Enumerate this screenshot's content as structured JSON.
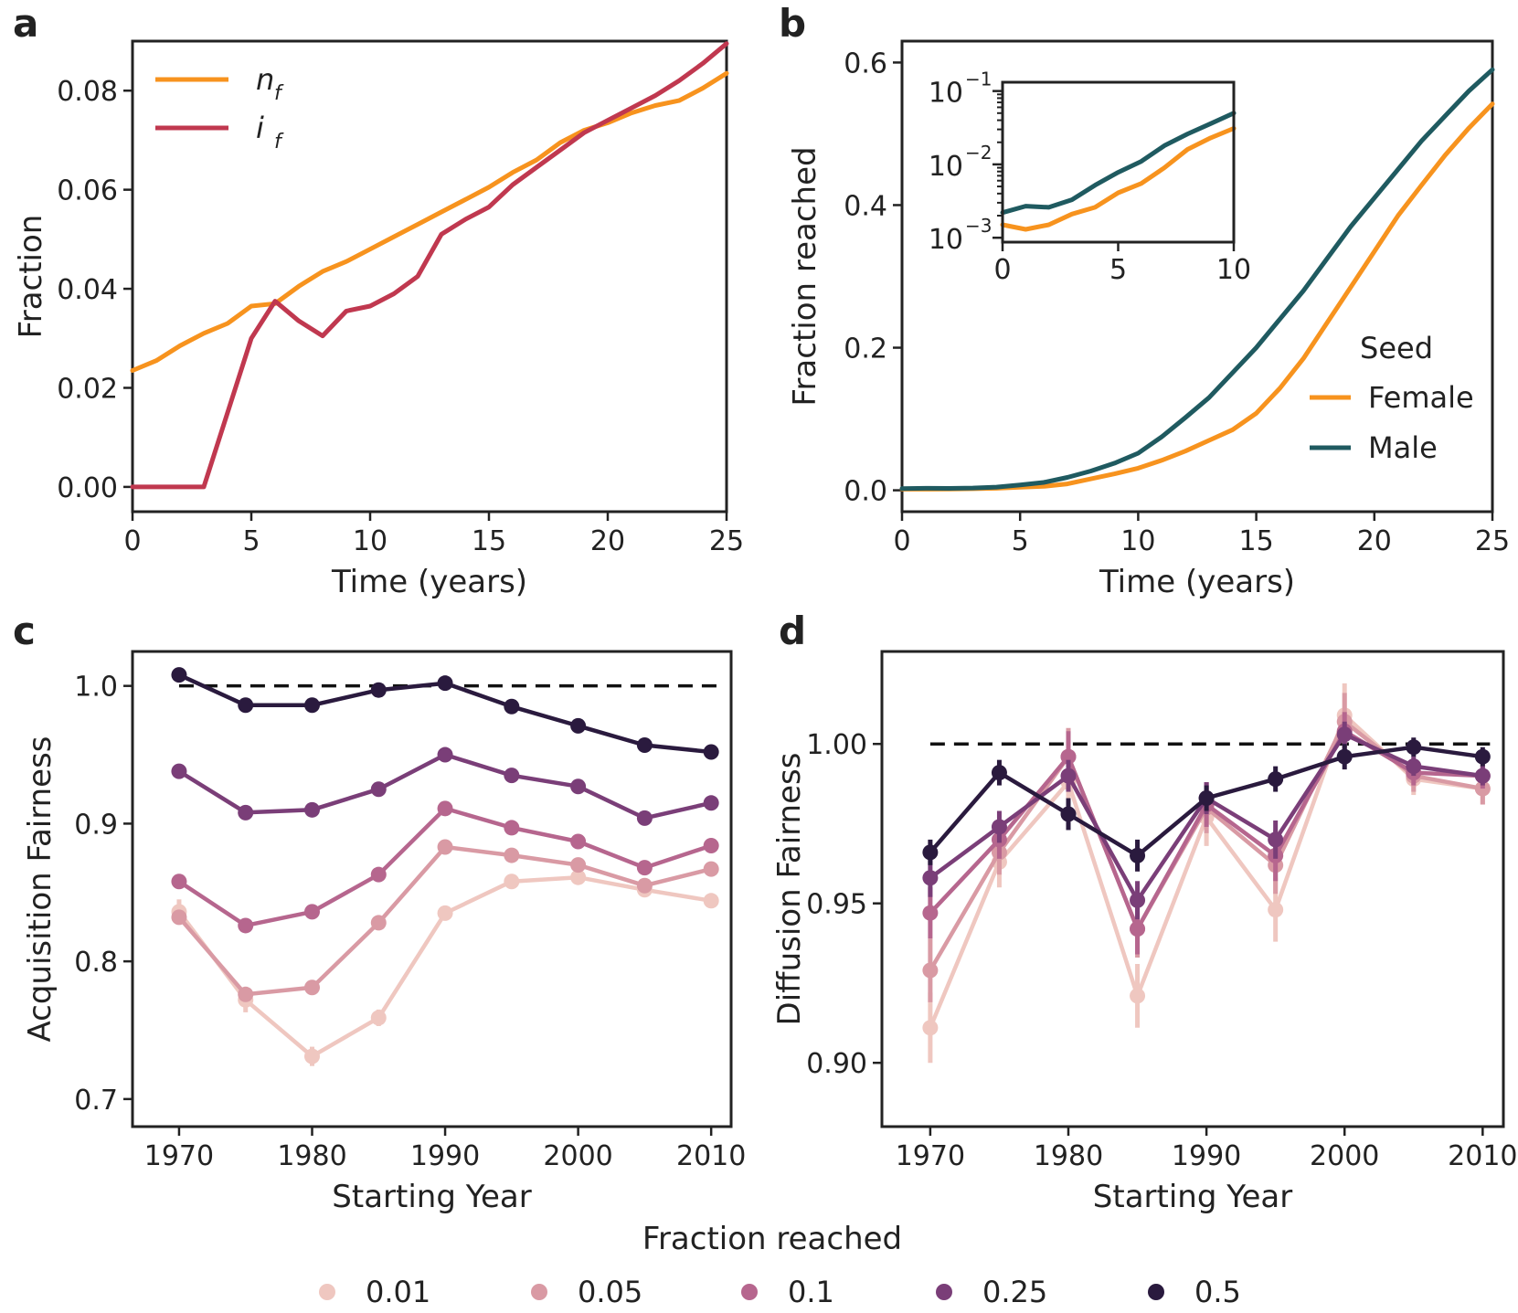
{
  "palette": {
    "nf": "#f7931e",
    "if": "#c0384f",
    "female": "#f7931e",
    "male": "#1f5a60",
    "frac_colors": [
      "#efc7c0",
      "#d99aa4",
      "#b6668e",
      "#7a3e78",
      "#2a1a3e"
    ]
  },
  "chart_data": [
    {
      "panel": "a",
      "type": "line",
      "xlabel": "Time (years)",
      "ylabel": "Fraction",
      "xlim": [
        0,
        25
      ],
      "ylim": [
        -0.005,
        0.09
      ],
      "xticks": [
        0,
        5,
        10,
        15,
        20,
        25
      ],
      "yticks": [
        0.0,
        0.02,
        0.04,
        0.06,
        0.08
      ],
      "ytick_labels": [
        "0.00",
        "0.02",
        "0.04",
        "0.06",
        "0.08"
      ],
      "legend": {
        "position": "top-left",
        "entries": [
          "n",
          "i"
        ],
        "subscript": "f"
      },
      "x": [
        0,
        1,
        2,
        3,
        4,
        5,
        6,
        7,
        8,
        9,
        10,
        11,
        12,
        13,
        14,
        15,
        16,
        17,
        18,
        19,
        20,
        21,
        22,
        23,
        24,
        25
      ],
      "series": [
        {
          "name": "n_f",
          "color_key": "nf",
          "values": [
            0.0235,
            0.0255,
            0.0285,
            0.031,
            0.033,
            0.0365,
            0.037,
            0.0405,
            0.0435,
            0.0455,
            0.048,
            0.0505,
            0.053,
            0.0555,
            0.058,
            0.0605,
            0.0635,
            0.066,
            0.0695,
            0.072,
            0.0735,
            0.0755,
            0.077,
            0.078,
            0.0805,
            0.0835
          ]
        },
        {
          "name": "i_f",
          "color_key": "if",
          "values": [
            0.0,
            0.0,
            0.0,
            0.0,
            0.015,
            0.03,
            0.0375,
            0.0335,
            0.0305,
            0.0355,
            0.0365,
            0.039,
            0.0425,
            0.051,
            0.054,
            0.0565,
            0.061,
            0.0645,
            0.068,
            0.0715,
            0.074,
            0.0765,
            0.079,
            0.082,
            0.0855,
            0.0895
          ]
        }
      ]
    },
    {
      "panel": "b",
      "type": "line",
      "xlabel": "Time (years)",
      "ylabel": "Fraction reached",
      "xlim": [
        0,
        25
      ],
      "ylim": [
        -0.03,
        0.63
      ],
      "xticks": [
        0,
        5,
        10,
        15,
        20,
        25
      ],
      "yticks": [
        0.0,
        0.2,
        0.4,
        0.6
      ],
      "ytick_labels": [
        "0.0",
        "0.2",
        "0.4",
        "0.6"
      ],
      "legend": {
        "title": "Seed",
        "position": "center-right",
        "entries": [
          "Female",
          "Male"
        ]
      },
      "x": [
        0,
        1,
        2,
        3,
        4,
        5,
        6,
        7,
        8,
        9,
        10,
        11,
        12,
        13,
        14,
        15,
        16,
        17,
        18,
        19,
        20,
        21,
        22,
        23,
        24,
        25
      ],
      "series": [
        {
          "name": "Female",
          "color_key": "female",
          "values": [
            0.0015,
            0.0015,
            0.0016,
            0.0022,
            0.0028,
            0.0042,
            0.0055,
            0.009,
            0.016,
            0.023,
            0.031,
            0.042,
            0.055,
            0.07,
            0.085,
            0.108,
            0.143,
            0.185,
            0.235,
            0.285,
            0.335,
            0.385,
            0.428,
            0.47,
            0.508,
            0.542
          ]
        },
        {
          "name": "Male",
          "color_key": "male",
          "values": [
            0.0023,
            0.0028,
            0.0027,
            0.0032,
            0.0045,
            0.0075,
            0.011,
            0.018,
            0.027,
            0.038,
            0.052,
            0.075,
            0.102,
            0.13,
            0.165,
            0.2,
            0.24,
            0.28,
            0.325,
            0.37,
            0.41,
            0.45,
            0.49,
            0.525,
            0.56,
            0.59
          ]
        }
      ],
      "inset": {
        "type": "line",
        "yscale": "log",
        "xlim": [
          0,
          10
        ],
        "ylim_exp": [
          -3.06,
          -0.88
        ],
        "xticks": [
          0,
          5,
          10
        ],
        "yticks_exp": [
          -3,
          -2,
          -1
        ],
        "ytick_base": "10",
        "ytick_exponents": [
          "−3",
          "−2",
          "−1"
        ],
        "x": [
          0,
          1,
          2,
          3,
          4,
          5,
          6,
          7,
          8,
          9,
          10
        ],
        "series": [
          {
            "name": "Female",
            "color_key": "female",
            "values": [
              0.0015,
              0.0013,
              0.0015,
              0.0021,
              0.0026,
              0.0041,
              0.0055,
              0.009,
              0.016,
              0.023,
              0.031
            ]
          },
          {
            "name": "Male",
            "color_key": "male",
            "values": [
              0.0022,
              0.0027,
              0.0026,
              0.0033,
              0.0052,
              0.0078,
              0.011,
              0.018,
              0.026,
              0.036,
              0.05
            ]
          }
        ]
      }
    },
    {
      "panel": "c",
      "type": "line",
      "marker": "circle",
      "xlabel": "Starting Year",
      "ylabel": "Acquisition Fairness",
      "xlim": [
        1966.5,
        2011.5
      ],
      "ylim": [
        0.68,
        1.025
      ],
      "xticks": [
        1970,
        1980,
        1990,
        2000,
        2010
      ],
      "yticks": [
        0.7,
        0.8,
        0.9,
        1.0
      ],
      "ytick_labels": [
        "0.7",
        "0.8",
        "0.9",
        "1.0"
      ],
      "reference_line": 1.0,
      "x": [
        1970,
        1975,
        1980,
        1985,
        1990,
        1995,
        2000,
        2005,
        2010
      ],
      "series": [
        {
          "name": "0.01",
          "values": [
            0.836,
            0.772,
            0.731,
            0.759,
            0.835,
            0.858,
            0.861,
            0.852,
            0.844
          ],
          "errors": [
            0.009,
            0.009,
            0.007,
            0.006,
            0.005,
            0.004,
            0.004,
            0.003,
            0.003
          ]
        },
        {
          "name": "0.05",
          "values": [
            0.832,
            0.776,
            0.781,
            0.828,
            0.883,
            0.877,
            0.87,
            0.855,
            0.867
          ],
          "errors": [
            0.004,
            0.004,
            0.003,
            0.003,
            0.003,
            0.003,
            0.003,
            0.003,
            0.003
          ]
        },
        {
          "name": "0.1",
          "values": [
            0.858,
            0.826,
            0.836,
            0.863,
            0.911,
            0.897,
            0.887,
            0.868,
            0.884
          ],
          "errors": [
            0.003,
            0.003,
            0.003,
            0.003,
            0.003,
            0.003,
            0.003,
            0.003,
            0.003
          ]
        },
        {
          "name": "0.25",
          "values": [
            0.938,
            0.908,
            0.91,
            0.925,
            0.95,
            0.935,
            0.927,
            0.904,
            0.915
          ],
          "errors": [
            0.003,
            0.002,
            0.002,
            0.002,
            0.002,
            0.002,
            0.002,
            0.002,
            0.002
          ]
        },
        {
          "name": "0.5",
          "values": [
            1.008,
            0.986,
            0.986,
            0.997,
            1.002,
            0.985,
            0.971,
            0.957,
            0.952
          ],
          "errors": [
            0.002,
            0.002,
            0.002,
            0.002,
            0.002,
            0.002,
            0.002,
            0.002,
            0.002
          ]
        }
      ]
    },
    {
      "panel": "d",
      "type": "line",
      "marker": "circle",
      "xlabel": "Starting Year",
      "ylabel": "Diffusion Fairness",
      "xlim": [
        1966.5,
        2011.5
      ],
      "ylim": [
        0.88,
        1.029
      ],
      "xticks": [
        1970,
        1980,
        1990,
        2000,
        2010
      ],
      "yticks": [
        0.9,
        0.95,
        1.0
      ],
      "ytick_labels": [
        "0.90",
        "0.95",
        "1.00"
      ],
      "reference_line": 1.0,
      "x": [
        1970,
        1975,
        1980,
        1985,
        1990,
        1995,
        2000,
        2005,
        2010
      ],
      "series": [
        {
          "name": "0.01",
          "values": [
            0.911,
            0.963,
            0.988,
            0.921,
            0.977,
            0.948,
            1.009,
            0.989,
            0.986
          ],
          "errors": [
            0.011,
            0.008,
            0.006,
            0.01,
            0.009,
            0.01,
            0.01,
            0.005,
            0.005
          ]
        },
        {
          "name": "0.05",
          "values": [
            0.929,
            0.966,
            0.996,
            0.942,
            0.98,
            0.962,
            1.007,
            0.99,
            0.986
          ],
          "errors": [
            0.01,
            0.007,
            0.009,
            0.009,
            0.008,
            0.009,
            0.009,
            0.005,
            0.005
          ]
        },
        {
          "name": "0.1",
          "values": [
            0.947,
            0.97,
            0.996,
            0.942,
            0.981,
            0.965,
            1.004,
            0.991,
            0.99
          ],
          "errors": [
            0.008,
            0.006,
            0.008,
            0.008,
            0.007,
            0.008,
            0.006,
            0.004,
            0.004
          ]
        },
        {
          "name": "0.25",
          "values": [
            0.958,
            0.974,
            0.99,
            0.951,
            0.983,
            0.97,
            1.003,
            0.993,
            0.99
          ],
          "errors": [
            0.006,
            0.005,
            0.005,
            0.006,
            0.005,
            0.006,
            0.004,
            0.003,
            0.003
          ]
        },
        {
          "name": "0.5",
          "values": [
            0.966,
            0.991,
            0.978,
            0.965,
            0.983,
            0.989,
            0.996,
            0.999,
            0.996
          ],
          "errors": [
            0.004,
            0.004,
            0.005,
            0.005,
            0.004,
            0.004,
            0.004,
            0.003,
            0.003
          ]
        }
      ]
    }
  ],
  "shared_legend": {
    "title": "Fraction reached",
    "entries": [
      "0.01",
      "0.05",
      "0.1",
      "0.25",
      "0.5"
    ]
  }
}
